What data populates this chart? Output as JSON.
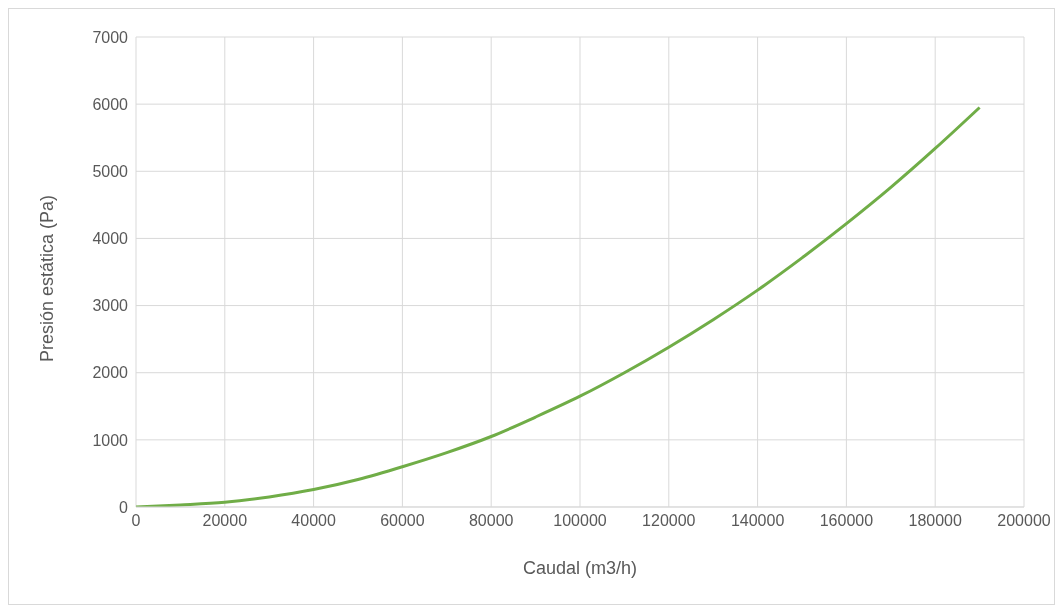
{
  "chart_data": {
    "type": "line",
    "xlabel": "Caudal (m3/h)",
    "ylabel": "Presión estática (Pa)",
    "x": [
      0,
      10000,
      20000,
      30000,
      40000,
      50000,
      60000,
      70000,
      80000,
      90000,
      100000,
      110000,
      120000,
      130000,
      140000,
      150000,
      160000,
      170000,
      180000,
      190000
    ],
    "series": [
      {
        "color": "#70ad47",
        "values": [
          0,
          30,
          70,
          150,
          260,
          410,
          600,
          810,
          1050,
          1340,
          1650,
          2000,
          2380,
          2790,
          3230,
          3710,
          4220,
          4760,
          5340,
          5950
        ]
      }
    ],
    "xlim": [
      0,
      200000
    ],
    "xticks": [
      0,
      20000,
      40000,
      60000,
      80000,
      100000,
      120000,
      140000,
      160000,
      180000,
      200000
    ],
    "ylim": [
      0,
      7000
    ],
    "yticks": [
      0,
      1000,
      2000,
      3000,
      4000,
      5000,
      6000,
      7000
    ],
    "grid": true,
    "legend": false,
    "marker": "none",
    "line_style": "solid"
  }
}
